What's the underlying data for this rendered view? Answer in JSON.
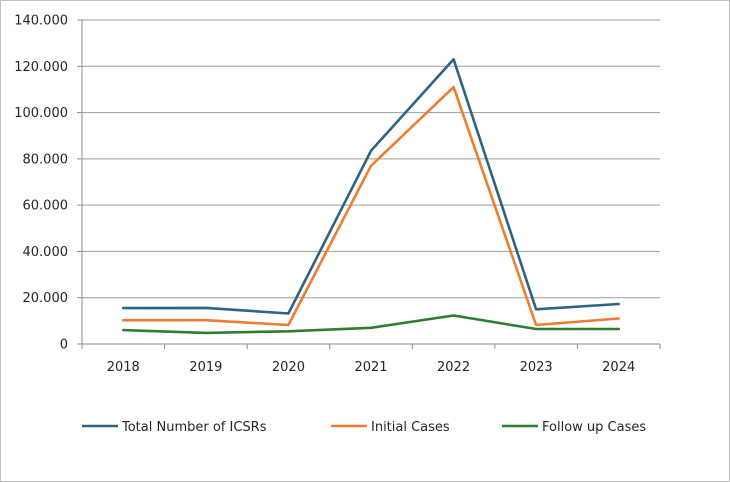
{
  "chart_data": {
    "type": "line",
    "categories": [
      "2018",
      "2019",
      "2020",
      "2021",
      "2022",
      "2023",
      "2024"
    ],
    "series": [
      {
        "name": "Total Number of ICSRs",
        "color": "#2e6384",
        "values": [
          15500,
          15600,
          13200,
          83500,
          123000,
          15000,
          17300
        ]
      },
      {
        "name": "Initial Cases",
        "color": "#ed7d31",
        "values": [
          10300,
          10300,
          8200,
          77000,
          111000,
          8200,
          11000
        ]
      },
      {
        "name": "Follow up Cases",
        "color": "#2e7d32",
        "values": [
          6000,
          4800,
          5500,
          7000,
          12300,
          6500,
          6500
        ]
      }
    ],
    "yticks": [
      "0",
      "20.000",
      "40.000",
      "60.000",
      "80.000",
      "100.000",
      "120.000",
      "140.000"
    ],
    "ylim": [
      0,
      140000
    ],
    "grid": true,
    "legend": "bottom"
  }
}
